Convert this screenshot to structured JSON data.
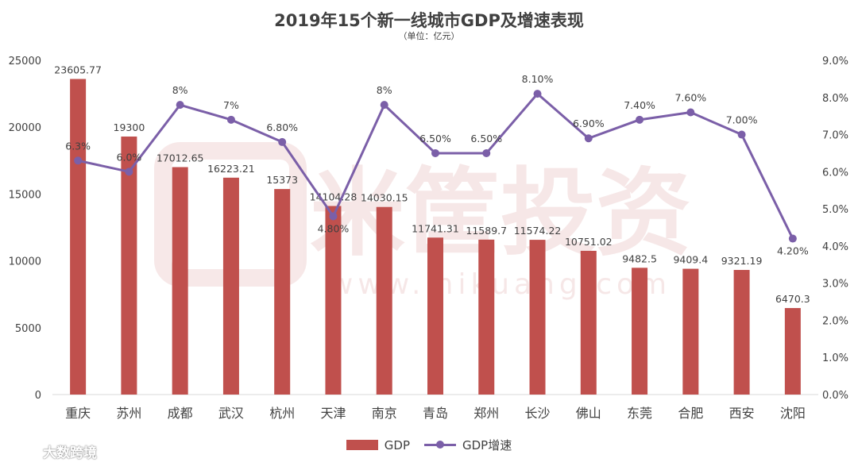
{
  "chart_data": {
    "type": "bar+line",
    "title": "2019年15个新一线城市GDP及增速表现",
    "subtitle": "（单位：亿元）",
    "categories": [
      "重庆",
      "苏州",
      "成都",
      "武汉",
      "杭州",
      "天津",
      "南京",
      "青岛",
      "郑州",
      "长沙",
      "佛山",
      "东莞",
      "合肥",
      "西安",
      "沈阳"
    ],
    "series": [
      {
        "name": "GDP",
        "type": "bar",
        "axis": "left",
        "values": [
          23605.77,
          19300,
          17012.65,
          16223.21,
          15373,
          14104.28,
          14030.15,
          11741.31,
          11589.7,
          11574.22,
          10751.02,
          9482.5,
          9409.4,
          9321.19,
          6470.3
        ],
        "labels": [
          "23605.77",
          "19300",
          "17012.65",
          "16223.21",
          "15373",
          "14104.28",
          "14030.15",
          "11741.31",
          "11589.7",
          "11574.22",
          "10751.02",
          "9482.5",
          "9409.4",
          "9321.19",
          "6470.3"
        ]
      },
      {
        "name": "GDP增速",
        "type": "line",
        "axis": "right",
        "values": [
          6.3,
          6.0,
          7.8,
          7.4,
          6.8,
          4.8,
          7.8,
          6.5,
          6.5,
          8.1,
          6.9,
          7.4,
          7.6,
          7.0,
          4.2
        ],
        "labels": [
          "6.3%",
          "6.0%",
          "8%",
          "7%",
          "6.80%",
          "4.80%",
          "8%",
          "6.50%",
          "6.50%",
          "8.10%",
          "6.90%",
          "7.40%",
          "7.60%",
          "7.00%",
          "4.20%"
        ]
      }
    ],
    "yleft": {
      "min": 0,
      "max": 25000,
      "ticks": [
        "0",
        "5000",
        "10000",
        "15000",
        "20000",
        "25000"
      ]
    },
    "yright": {
      "min": 0,
      "max": 9,
      "ticks": [
        "0.0%",
        "1.0%",
        "2.0%",
        "3.0%",
        "4.0%",
        "5.0%",
        "6.0%",
        "7.0%",
        "8.0%",
        "9.0%"
      ]
    },
    "legend_position": "bottom",
    "colors": {
      "bar": "#c0504d",
      "line": "#7b5fa8",
      "text": "#404040",
      "axis": "#d9d9d9"
    }
  },
  "watermark": {
    "text": "米筐投资",
    "url": "www.mikuang.com"
  },
  "brand": {
    "name": "大数跨境"
  }
}
